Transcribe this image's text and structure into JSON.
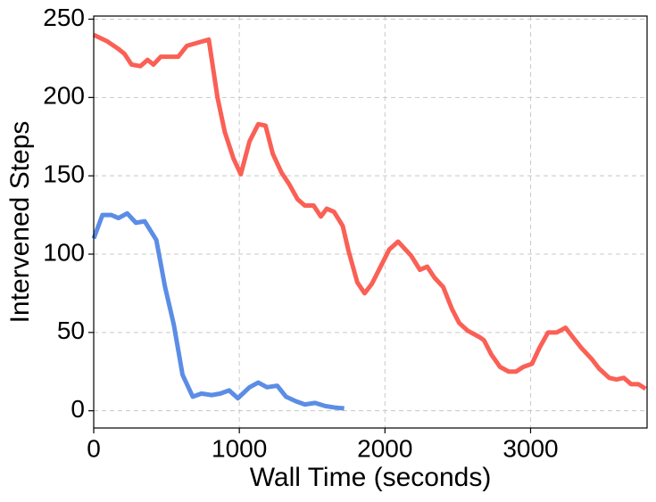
{
  "chart_data": {
    "type": "line",
    "x_label": "Wall Time (seconds)",
    "y_label": "Intervened Steps",
    "xlim": [
      0,
      3800
    ],
    "xticks": [
      0,
      1000,
      2000,
      3000
    ],
    "ylim": [
      -11,
      252
    ],
    "yticks": [
      0,
      50,
      100,
      150,
      200,
      250
    ],
    "grid": true,
    "series": [
      {
        "color": "#fa6055",
        "x": [
          0,
          90,
          170,
          210,
          260,
          320,
          370,
          410,
          460,
          540,
          580,
          640,
          790,
          850,
          900,
          960,
          1010,
          1070,
          1130,
          1180,
          1230,
          1290,
          1340,
          1400,
          1450,
          1510,
          1560,
          1600,
          1650,
          1710,
          1750,
          1810,
          1860,
          1910,
          1970,
          2030,
          2090,
          2180,
          2240,
          2290,
          2340,
          2400,
          2460,
          2510,
          2570,
          2650,
          2680,
          2730,
          2790,
          2850,
          2900,
          2950,
          3010,
          3060,
          3120,
          3180,
          3240,
          3290,
          3350,
          3420,
          3470,
          3540,
          3590,
          3640,
          3690,
          3740,
          3790
        ],
        "values": [
          240,
          236,
          231,
          228,
          221,
          220,
          224,
          221,
          226,
          226,
          226,
          233,
          237,
          200,
          178,
          161,
          151,
          172,
          183,
          182,
          164,
          152,
          145,
          135,
          131,
          131,
          124,
          129,
          127,
          118,
          102,
          82,
          75,
          81,
          92,
          103,
          108,
          99,
          90,
          92,
          85,
          79,
          65,
          56,
          51,
          47,
          45,
          36,
          28,
          25,
          25,
          28,
          30,
          40,
          50,
          50,
          53,
          47,
          40,
          33,
          27,
          21,
          20,
          21,
          17,
          17,
          14
        ]
      },
      {
        "color": "#5b8de6",
        "x": [
          0,
          60,
          120,
          170,
          230,
          290,
          350,
          430,
          490,
          550,
          610,
          680,
          740,
          810,
          870,
          930,
          990,
          1070,
          1130,
          1190,
          1260,
          1320,
          1390,
          1450,
          1520,
          1590,
          1660,
          1720
        ],
        "values": [
          110,
          125,
          125,
          123,
          126,
          120,
          121,
          109,
          79,
          55,
          23,
          9,
          11,
          10,
          11,
          13,
          8,
          15,
          18,
          15,
          16,
          9,
          6,
          4,
          5,
          3,
          2,
          1.5
        ]
      }
    ]
  }
}
